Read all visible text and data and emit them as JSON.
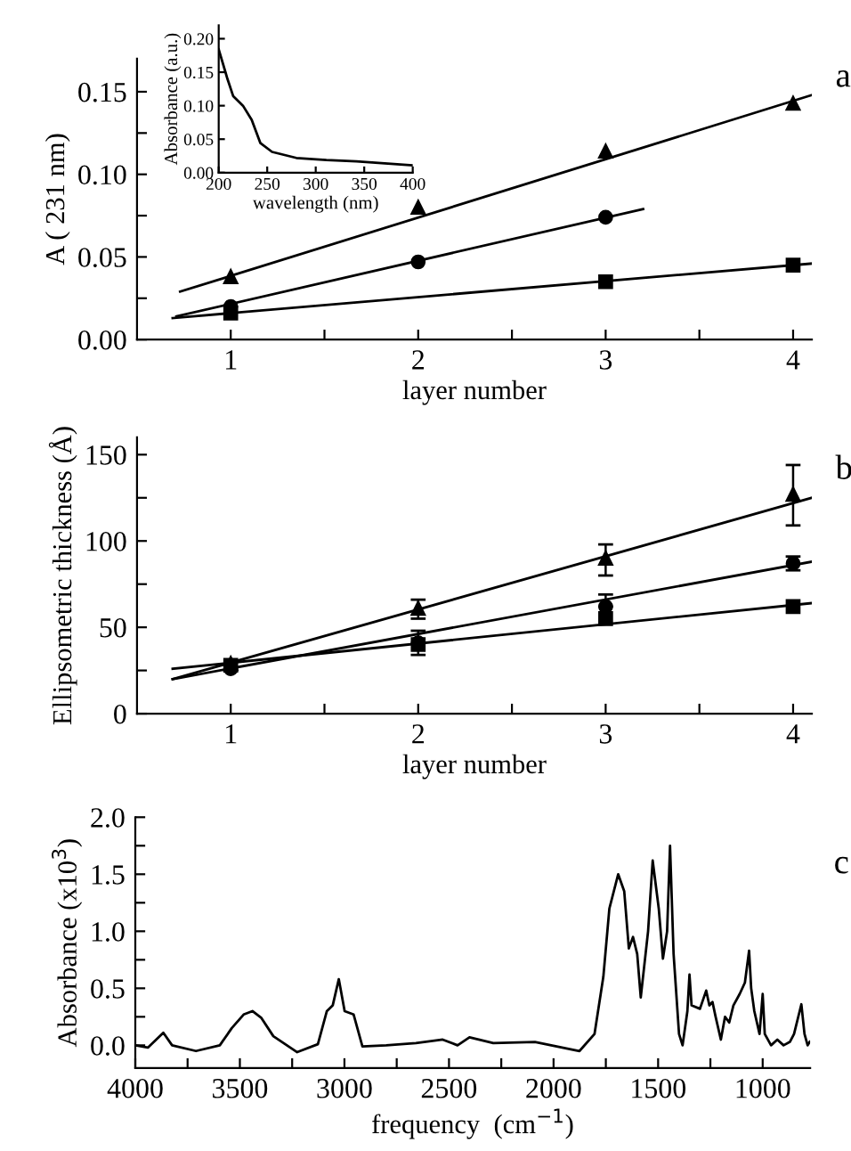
{
  "chart_data": [
    {
      "type": "scatter",
      "xlabel": "layer number",
      "ylabel": "A ( 231 nm)",
      "annotations": [
        "a"
      ],
      "xlim": [
        0.5,
        4.1
      ],
      "ylim": [
        0,
        0.17
      ],
      "xticks": [
        1,
        {
          "value": 1.5,
          "label": null
        },
        2,
        {
          "value": 2.5,
          "label": null
        },
        3,
        {
          "value": 3.5,
          "label": null
        },
        4
      ],
      "yticks": [
        {
          "value": 0,
          "label": "0.00"
        },
        {
          "value": 0.025,
          "label": null
        },
        {
          "value": 0.05,
          "label": "0.05"
        },
        {
          "value": 0.075,
          "label": null
        },
        {
          "value": 0.1,
          "label": "0.10"
        },
        {
          "value": 0.125,
          "label": null
        },
        {
          "value": 0.15,
          "label": "0.15"
        }
      ],
      "series": [
        {
          "marker": "triangle",
          "color": "#000000",
          "x": [
            1,
            2,
            3,
            4
          ],
          "values": [
            0.038,
            0.08,
            0.114,
            0.143
          ]
        },
        {
          "marker": "circle",
          "color": "#000000",
          "x": [
            1,
            2,
            3
          ],
          "values": [
            0.02,
            0.047,
            0.074
          ]
        },
        {
          "marker": "square",
          "color": "#000000",
          "x": [
            1,
            3,
            4
          ],
          "values": [
            0.016,
            0.035,
            0.045
          ]
        },
        {
          "type": "line",
          "marker": "none",
          "line_style": "solid",
          "color": "#000000",
          "x": [
            0.73,
            4.1
          ],
          "values": [
            0.029,
            0.148
          ]
        },
        {
          "type": "line",
          "marker": "none",
          "line_style": "solid",
          "color": "#000000",
          "x": [
            0.71,
            3.2
          ],
          "values": [
            0.014,
            0.079
          ]
        },
        {
          "type": "line",
          "marker": "none",
          "line_style": "solid",
          "color": "#000000",
          "x": [
            0.69,
            4.1
          ],
          "values": [
            0.013,
            0.046
          ]
        }
      ]
    },
    {
      "type": "line",
      "xlabel": "wavelength (nm)",
      "ylabel": "Absorbance (a.u.)",
      "xlim": [
        200,
        400
      ],
      "ylim": [
        0,
        0.22
      ],
      "xticks": [
        200,
        250,
        300,
        350,
        400
      ],
      "yticks": [
        {
          "value": 0,
          "label": "0.00"
        },
        {
          "value": 0.05,
          "label": "0.05"
        },
        {
          "value": 0.1,
          "label": "0.10"
        },
        {
          "value": 0.15,
          "label": "0.15"
        },
        {
          "value": 0.2,
          "label": "0.20"
        }
      ],
      "series": [
        {
          "marker": "none",
          "line_style": "solid",
          "color": "#000000",
          "x": [
            200,
            209,
            215,
            225,
            234,
            243,
            255,
            280,
            311,
            342,
            400
          ],
          "values": [
            0.184,
            0.14,
            0.114,
            0.1,
            0.079,
            0.044,
            0.031,
            0.022,
            0.019,
            0.017,
            0.011
          ]
        }
      ]
    },
    {
      "type": "scatter",
      "xlabel": "layer number",
      "ylabel": "Ellipsometric thickness (Å)",
      "annotations": [
        "b"
      ],
      "xlim": [
        0.5,
        4.1
      ],
      "ylim": [
        0,
        160
      ],
      "xticks": [
        1,
        {
          "value": 1.5,
          "label": null
        },
        2,
        {
          "value": 2.5,
          "label": null
        },
        3,
        {
          "value": 3.5,
          "label": null
        },
        4
      ],
      "yticks": [
        0,
        {
          "value": 25,
          "label": null
        },
        50,
        {
          "value": 75,
          "label": null
        },
        100,
        {
          "value": 125,
          "label": null
        },
        150
      ],
      "series": [
        {
          "marker": "triangle",
          "color": "#000000",
          "x": [
            1,
            2,
            3,
            4
          ],
          "values": [
            29,
            61,
            90,
            127
          ],
          "errors": [
            null,
            [
              55,
              66
            ],
            [
              80,
              98
            ],
            [
              109,
              144
            ]
          ]
        },
        {
          "marker": "circle",
          "color": "#000000",
          "x": [
            1,
            2,
            3,
            4
          ],
          "values": [
            26,
            41,
            62,
            87
          ],
          "errors": [
            null,
            [
              34,
              48
            ],
            [
              62,
              69
            ],
            [
              83,
              91
            ]
          ]
        },
        {
          "marker": "square",
          "color": "#000000",
          "x": [
            1,
            2,
            3,
            4
          ],
          "values": [
            28,
            40,
            55,
            62
          ]
        },
        {
          "type": "line",
          "marker": "none",
          "line_style": "solid",
          "color": "#000000",
          "x": [
            0.69,
            4.1
          ],
          "values": [
            20,
            125
          ]
        },
        {
          "type": "line",
          "marker": "none",
          "line_style": "solid",
          "color": "#000000",
          "x": [
            0.69,
            4.1
          ],
          "values": [
            20,
            88
          ]
        },
        {
          "type": "line",
          "marker": "none",
          "line_style": "solid",
          "color": "#000000",
          "x": [
            0.69,
            4.1
          ],
          "values": [
            26,
            64
          ]
        }
      ]
    },
    {
      "type": "line",
      "xlabel": "frequency  (cm$^{−1}$)",
      "ylabel": "Absorbance (x10$^{3}$)",
      "annotations": [
        "c"
      ],
      "xlim": [
        4000,
        773
      ],
      "ylim": [
        -0.2,
        2.0
      ],
      "xticks": [
        4000,
        {
          "value": 3750,
          "label": null
        },
        3500,
        {
          "value": 3250,
          "label": null
        },
        3000,
        {
          "value": 2750,
          "label": null
        },
        2500,
        {
          "value": 2250,
          "label": null
        },
        2000,
        {
          "value": 1750,
          "label": null
        },
        1500,
        {
          "value": 1250,
          "label": null
        },
        1000
      ],
      "yticks": [
        {
          "value": 0,
          "label": "0.0"
        },
        {
          "value": 0.25,
          "label": null
        },
        {
          "value": 0.5,
          "label": "0.5"
        },
        {
          "value": 0.75,
          "label": null
        },
        {
          "value": 1.0,
          "label": "1.0"
        },
        {
          "value": 1.25,
          "label": null
        },
        {
          "value": 1.5,
          "label": "1.5"
        },
        {
          "value": 1.75,
          "label": null
        },
        {
          "value": 2.0,
          "label": "2.0"
        }
      ],
      "series": [
        {
          "marker": "none",
          "line_style": "solid",
          "color": "#000000",
          "x": [
            4000,
            3940,
            3866,
            3824,
            3710,
            3596,
            3539,
            3482,
            3440,
            3397,
            3340,
            3226,
            3127,
            3084,
            3056,
            3027,
            2999,
            2956,
            2914,
            2800,
            2658,
            2530,
            2459,
            2402,
            2288,
            2089,
            1876,
            1804,
            1762,
            1733,
            1691,
            1662,
            1640,
            1620,
            1600,
            1583,
            1548,
            1526,
            1497,
            1477,
            1457,
            1443,
            1426,
            1400,
            1383,
            1360,
            1350,
            1340,
            1300,
            1270,
            1255,
            1240,
            1225,
            1200,
            1180,
            1160,
            1140,
            1110,
            1085,
            1065,
            1055,
            1040,
            1015,
            1000,
            990,
            960,
            930,
            900,
            870,
            850,
            815,
            800,
            785,
            775
          ],
          "values": [
            0.0,
            -0.02,
            0.11,
            0.0,
            -0.05,
            0.0,
            0.15,
            0.27,
            0.3,
            0.24,
            0.08,
            -0.06,
            0.01,
            0.3,
            0.35,
            0.58,
            0.3,
            0.27,
            -0.01,
            0.0,
            0.02,
            0.05,
            0.0,
            0.07,
            0.02,
            0.03,
            -0.05,
            0.1,
            0.6,
            1.2,
            1.5,
            1.35,
            0.85,
            0.95,
            0.8,
            0.42,
            1.0,
            1.62,
            1.2,
            0.76,
            1.0,
            1.75,
            0.8,
            0.1,
            0.0,
            0.3,
            0.62,
            0.35,
            0.32,
            0.48,
            0.35,
            0.38,
            0.25,
            0.05,
            0.25,
            0.2,
            0.35,
            0.45,
            0.55,
            0.83,
            0.5,
            0.3,
            0.1,
            0.45,
            0.1,
            0.0,
            0.05,
            0.0,
            0.03,
            0.1,
            0.36,
            0.1,
            0.0,
            0.03
          ]
        }
      ]
    }
  ]
}
